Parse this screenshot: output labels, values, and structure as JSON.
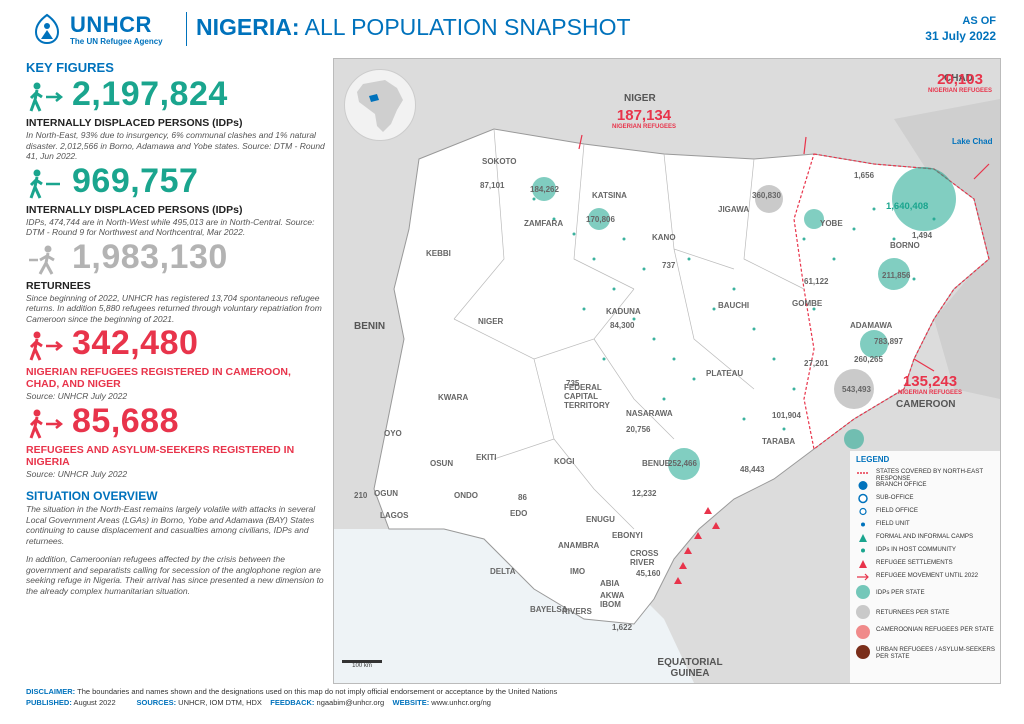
{
  "header": {
    "logo_name": "UNHCR",
    "logo_sub": "The UN Refugee Agency",
    "title_bold": "NIGERIA:",
    "title_rest": " ALL POPULATION SNAPSHOT",
    "asof_label": "AS OF",
    "asof_date": "31 July 2022"
  },
  "key_figures": {
    "heading": "KEY FIGURES",
    "items": [
      {
        "number": "2,197,824",
        "label": "INTERNALLY DISPLACED PERSONS (IDPs)",
        "note": "In North-East, 93% due to insurgency, 6% communal clashes and 1% natural disaster. 2,012,566 in Borno, Adamawa and Yobe states. Source: DTM - Round 41, Jun 2022.",
        "color": "#1aa58e"
      },
      {
        "number": "969,757",
        "label": "INTERNALLY DISPLACED PERSONS (IDPs)",
        "note": "IDPs, 474,744 are in North-West while 495,013 are in North-Central. Source: DTM - Round 9 for Northwest and Northcentral, Mar 2022.",
        "color": "#1aa58e"
      },
      {
        "number": "1,983,130",
        "label": "RETURNEES",
        "note": "Since beginning of 2022, UNHCR has registered 13,704 spontaneous refugee returns. In addition 5,880 refugees returned through voluntary repatriation from Cameroon since the beginning of 2021.",
        "color": "#b3b3b3"
      },
      {
        "number": "342,480",
        "label": "NIGERIAN REFUGEES REGISTERED IN CAMEROON, CHAD, AND NIGER",
        "note": "Source: UNHCR July 2022",
        "color": "#e8344b"
      },
      {
        "number": "85,688",
        "label": "REFUGEES AND ASYLUM-SEEKERS REGISTERED IN NIGERIA",
        "note": "Source: UNHCR July 2022",
        "color": "#e8344b"
      }
    ]
  },
  "overview": {
    "heading": "SITUATION OVERVIEW",
    "p1": "The situation in the North-East remains largely volatile with attacks in several Local Government Areas (LGAs) in Borno, Yobe and Adamawa (BAY) States continuing to cause displacement and casualties among civilians, IDPs and returnees.",
    "p2": "In addition, Cameroonian refugees affected by the crisis between the government and separatists calling for secession of the anglophone region are seeking refuge in Nigeria. Their arrival has since presented a new dimension to the already complex humanitarian situation."
  },
  "map": {
    "countries": {
      "niger": "NIGER",
      "chad": "CHAD",
      "cameroon": "CAMEROON",
      "benin": "BENIN",
      "eq_guinea": "EQUATORIAL GUINEA",
      "lake_chad": "Lake Chad"
    },
    "refugee_boxes": [
      {
        "value": "187,134",
        "sub": "NIGERIAN REFUGEES"
      },
      {
        "value": "20,103",
        "sub": "NIGERIAN REFUGEES"
      },
      {
        "value": "135,243",
        "sub": "NIGERIAN REFUGEES"
      }
    ],
    "states": [
      "SOKOTO",
      "KATSINA",
      "JIGAWA",
      "KANO",
      "YOBE",
      "BORNO",
      "ZAMFARA",
      "KEBBI",
      "KADUNA",
      "BAUCHI",
      "GOMBE",
      "ADAMAWA",
      "NIGER",
      "PLATEAU",
      "FEDERAL CAPITAL TERRITORY",
      "NASARAWA",
      "KWARA",
      "TARABA",
      "OYO",
      "OSUN",
      "EKITI",
      "KOGI",
      "BENUE",
      "ONDO",
      "OGUN",
      "LAGOS",
      "EDO",
      "ENUGU",
      "EBONYI",
      "ANAMBRA",
      "DELTA",
      "IMO",
      "ABIA",
      "CROSS RIVER",
      "AKWA IBOM",
      "BAYELSA",
      "RIVERS"
    ],
    "idp_circles": [
      {
        "label": "1,640,408"
      },
      {
        "label": "360,830"
      },
      {
        "label": "783,897"
      },
      {
        "label": "543,493"
      },
      {
        "label": "184,262"
      },
      {
        "label": "87,101"
      },
      {
        "label": "170,806"
      },
      {
        "label": "211,856"
      },
      {
        "label": "61,122"
      },
      {
        "label": "84,300"
      },
      {
        "label": "27,201"
      },
      {
        "label": "260,265"
      },
      {
        "label": "101,904"
      },
      {
        "label": "252,466"
      }
    ],
    "small_values": [
      "735",
      "737",
      "20,756",
      "48,443",
      "210",
      "86",
      "12,232",
      "45,160",
      "1,622",
      "1,656",
      "1,494"
    ],
    "legend": {
      "title": "LEGEND",
      "items": [
        "STATES COVERED BY NORTH-EAST RESPONSE",
        "BRANCH OFFICE",
        "SUB-OFFICE",
        "FIELD OFFICE",
        "FIELD UNIT",
        "FORMAL AND INFORMAL CAMPS",
        "IDPs IN HOST COMMUNITY",
        "REFUGEE SETTLEMENTS",
        "REFUGEE MOVEMENT UNTIL 2022",
        "IDPs PER STATE",
        "RETURNEES PER STATE",
        "CAMEROONIAN REFUGEES PER STATE",
        "URBAN REFUGEES / ASYLUM-SEEKERS PER STATE"
      ]
    },
    "scale": "100 km"
  },
  "footer": {
    "disclaimer_label": "DISCLAIMER:",
    "disclaimer": "The boundaries and names shown and the designations used on this map do not imply official endorsement or acceptance by the United Nations",
    "published_label": "PUBLISHED:",
    "published": "August 2022",
    "sources_label": "SOURCES:",
    "sources": "UNHCR, IOM DTM, HDX",
    "feedback_label": "FEEDBACK:",
    "feedback": "ngaabim@unhcr.org",
    "website_label": "WEBSITE:",
    "website": "www.unhcr.org/ng"
  }
}
